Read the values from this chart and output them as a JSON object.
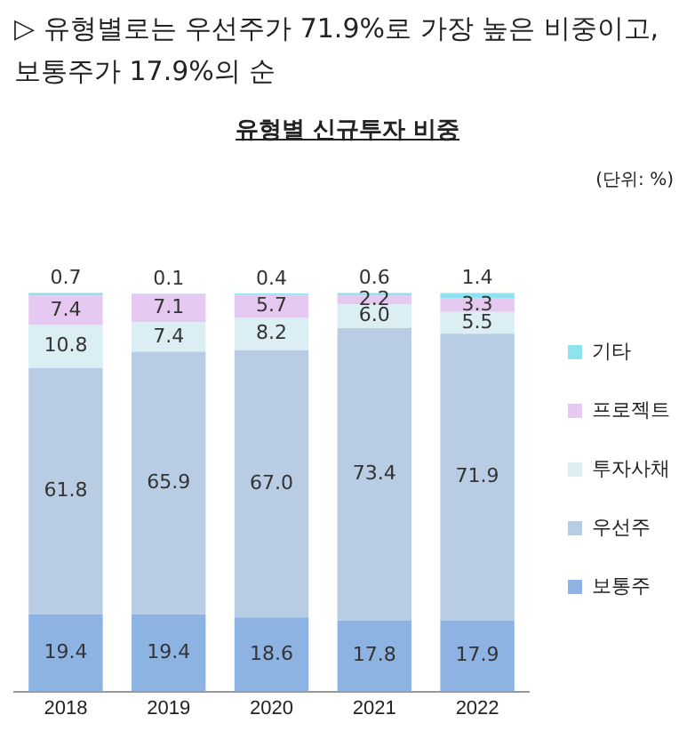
{
  "chart_data": {
    "type": "bar",
    "title": "▷ 유형별로는 우선주가 71.9%로 가장 높은 비중이고, 보통주가 17.9%의 순",
    "subtitle": "유형별 신규투자 비중",
    "annotations": [
      "(단위: %)"
    ],
    "categories": [
      "2018",
      "2019",
      "2020",
      "2021",
      "2022"
    ],
    "stacked": true,
    "legend": "right",
    "tick_labels": "x",
    "grid": false,
    "series": [
      {
        "name": "보통주",
        "color": "#8db3e2",
        "values": [
          19.4,
          19.4,
          18.6,
          17.8,
          17.9
        ],
        "value_labels": [
          "19.4",
          "19.4",
          "18.6",
          "17.8",
          "17.9"
        ]
      },
      {
        "name": "우선주",
        "color": "#b8cce4",
        "values": [
          61.8,
          65.9,
          67.0,
          73.4,
          71.9
        ],
        "value_labels": [
          "61.8",
          "65.9",
          "67.0",
          "73.4",
          "71.9"
        ]
      },
      {
        "name": "투자사채",
        "color": "#dbeef3",
        "values": [
          10.8,
          7.4,
          8.2,
          6.0,
          5.5
        ],
        "value_labels": [
          "10.8",
          "7.4",
          "8.2",
          "6.0",
          "5.5"
        ]
      },
      {
        "name": "프로젝트",
        "color": "#e5c9f0",
        "values": [
          7.4,
          7.1,
          5.7,
          2.2,
          3.3
        ],
        "value_labels": [
          "7.4",
          "7.1",
          "5.7",
          "2.2",
          "3.3"
        ]
      },
      {
        "name": "기타",
        "color": "#8fe3ee",
        "values": [
          0.7,
          0.1,
          0.4,
          0.6,
          1.4
        ],
        "value_labels": [
          "0.7",
          "0.1",
          "0.4",
          "0.6",
          "1.4"
        ]
      }
    ]
  }
}
